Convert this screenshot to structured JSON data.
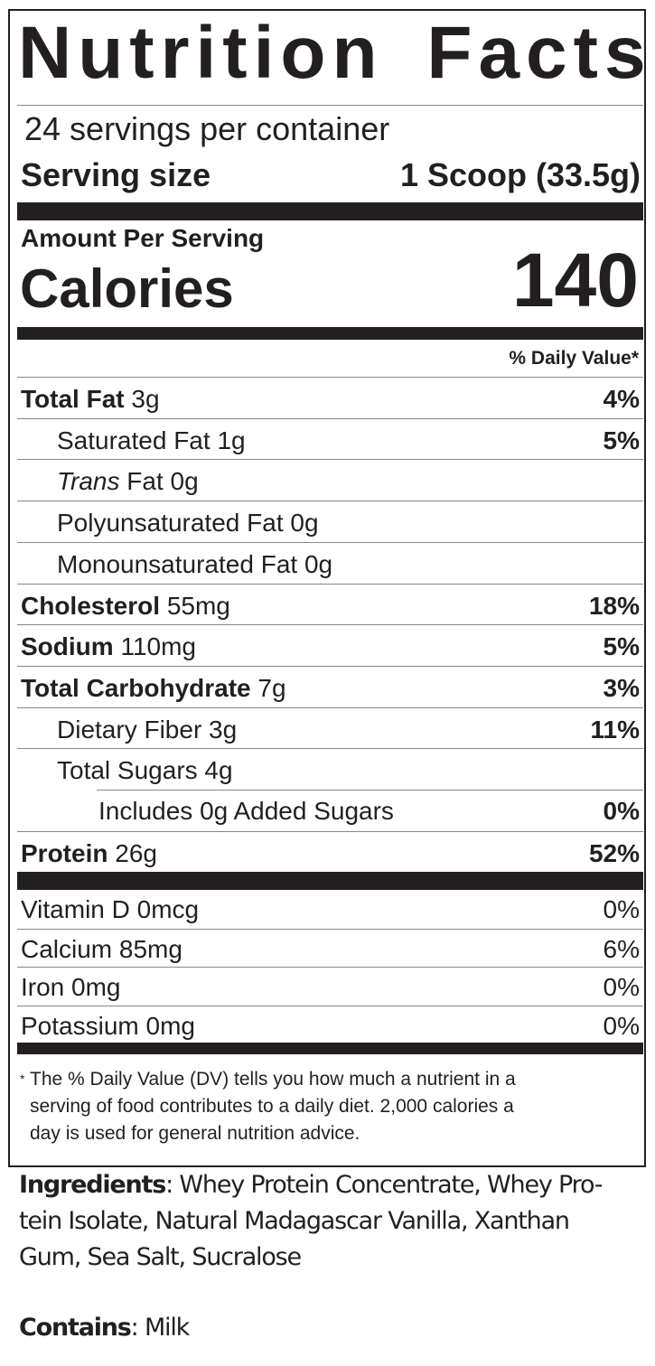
{
  "label": {
    "title": "Nutrition Facts",
    "servings_per_container": "24 servings per container",
    "serving_size_label": "Serving size",
    "serving_size_value": "1 Scoop (33.5g)",
    "amount_per_serving": "Amount Per Serving",
    "calories_label": "Calories",
    "calories_value": "140",
    "daily_value_header": "% Daily Value*",
    "nutrients": [
      {
        "name": "Total Fat",
        "amount": "3g",
        "dv": "4%",
        "bold": true,
        "indent": 0
      },
      {
        "name": "Saturated Fat",
        "amount": "1g",
        "dv": "5%",
        "bold": false,
        "indent": 1
      },
      {
        "name": "Trans",
        "name_suffix": "Fat",
        "amount": "0g",
        "dv": "",
        "bold": false,
        "indent": 1,
        "italic": true
      },
      {
        "name": "Polyunsaturated Fat",
        "amount": "0g",
        "dv": "",
        "bold": false,
        "indent": 1
      },
      {
        "name": "Monounsaturated Fat",
        "amount": "0g",
        "dv": "",
        "bold": false,
        "indent": 1
      },
      {
        "name": "Cholesterol",
        "amount": "55mg",
        "dv": "18%",
        "bold": true,
        "indent": 0
      },
      {
        "name": "Sodium",
        "amount": "110mg",
        "dv": "5%",
        "bold": true,
        "indent": 0
      },
      {
        "name": "Total Carbohydrate",
        "amount": "7g",
        "dv": "3%",
        "bold": true,
        "indent": 0
      },
      {
        "name": "Dietary Fiber",
        "amount": "3g",
        "dv": "11%",
        "bold": false,
        "indent": 1
      },
      {
        "name": "Total Sugars",
        "amount": "4g",
        "dv": "",
        "bold": false,
        "indent": 1
      },
      {
        "name": "Includes 0g Added Sugars",
        "amount": "",
        "dv": "0%",
        "bold": false,
        "indent": 2
      },
      {
        "name": "Protein",
        "amount": "26g",
        "dv": "52%",
        "bold": true,
        "indent": 0
      }
    ],
    "vitamins": [
      {
        "name": "Vitamin D 0mcg",
        "dv": "0%"
      },
      {
        "name": "Calcium 85mg",
        "dv": "6%"
      },
      {
        "name": "Iron 0mg",
        "dv": "0%"
      },
      {
        "name": "Potassium 0mg",
        "dv": "0%"
      }
    ],
    "footnote_star": "*",
    "footnote_lines": [
      "The % Daily Value (DV) tells you how much a nutrient in a",
      "serving of food contributes to a daily diet. 2,000 calories a",
      "day is used for general nutrition advice."
    ]
  },
  "ingredients": {
    "label": "Ingredients",
    "lines": [
      ": Whey Protein Concentrate, Whey Pro-",
      "tein Isolate, Natural Madagascar Vanilla, Xanthan",
      "Gum, Sea Salt, Sucralose"
    ]
  },
  "contains": {
    "label": "Contains",
    "value": ": Milk"
  }
}
